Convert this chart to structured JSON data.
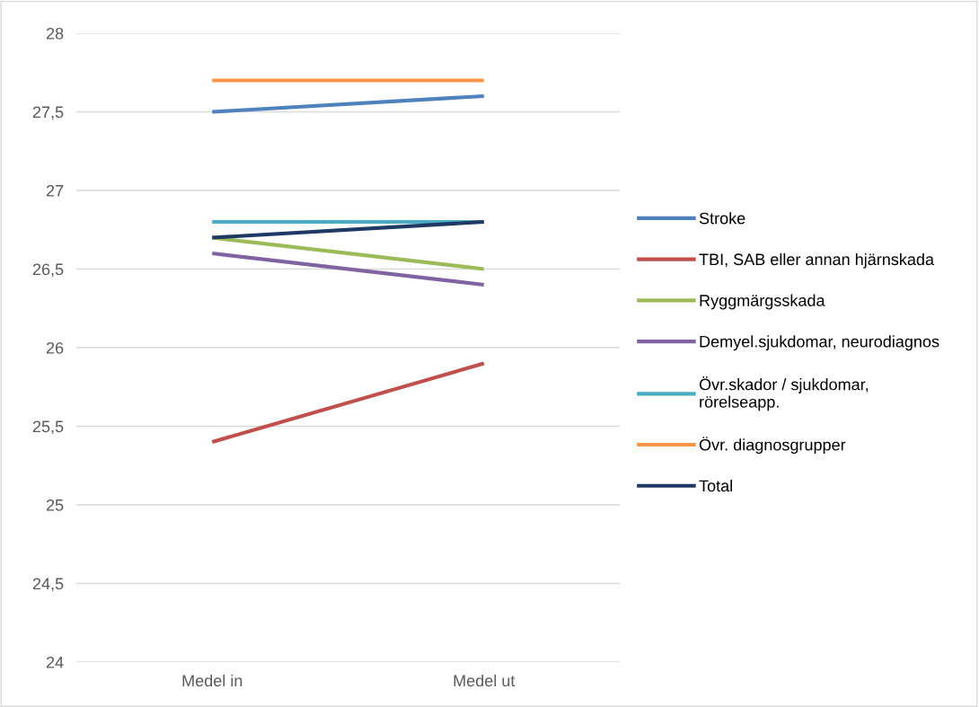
{
  "chart_data": {
    "type": "line",
    "categories": [
      "Medel in",
      "Medel ut"
    ],
    "series": [
      {
        "name": "Stroke",
        "color": "#4f81bd",
        "values": [
          27.5,
          27.6
        ]
      },
      {
        "name": "TBI, SAB eller annan hjärnskada",
        "color": "#c0504d",
        "values": [
          25.4,
          25.9
        ]
      },
      {
        "name": "Ryggmärgsskada",
        "color": "#9bbb59",
        "values": [
          26.7,
          26.5
        ]
      },
      {
        "name": "Demyel.sjukdomar, neurodiagnos",
        "color": "#8064a2",
        "values": [
          26.6,
          26.4
        ]
      },
      {
        "name": "Övr.skador / sjukdomar,\nrörelseapp.",
        "color": "#4bacc6",
        "values": [
          26.8,
          26.8
        ]
      },
      {
        "name": "Övr. diagnosgrupper",
        "color": "#f79646",
        "values": [
          27.7,
          27.7
        ]
      },
      {
        "name": "Total",
        "color": "#1f3864",
        "values": [
          26.7,
          26.8
        ]
      }
    ],
    "ylim": [
      24,
      28
    ],
    "yticks": [
      24,
      {
        "value": 24.5,
        "label": "24,5"
      },
      25,
      {
        "value": 25.5,
        "label": "25,5"
      },
      26,
      {
        "value": 26.5,
        "label": "26,5"
      },
      27,
      {
        "value": 27.5,
        "label": "27,5"
      },
      28
    ],
    "grid": "y",
    "legend": "right",
    "marker": "none",
    "line_style": "solid"
  }
}
